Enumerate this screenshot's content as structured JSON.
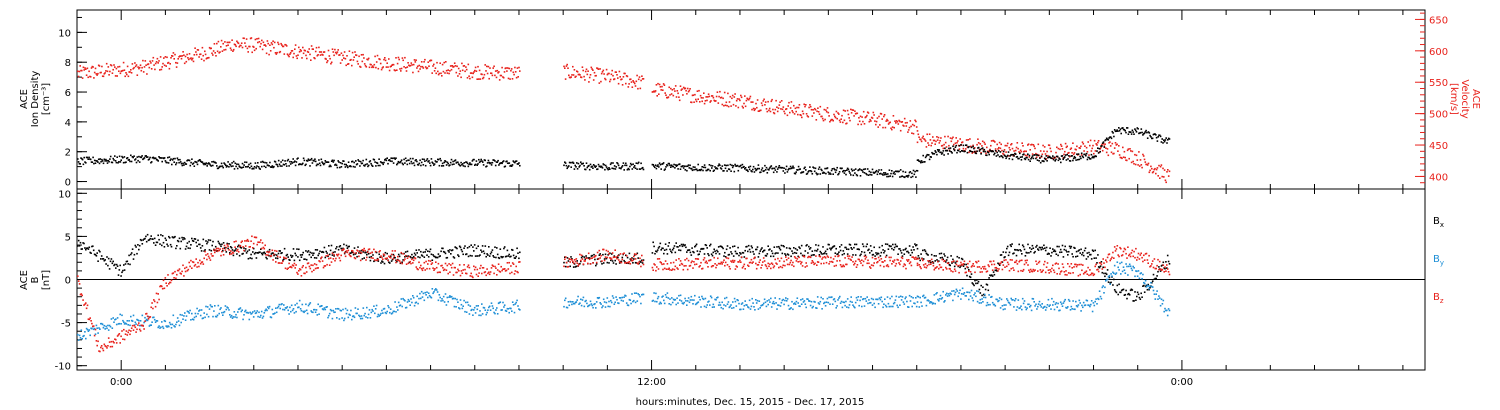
{
  "chart_data": [
    {
      "type": "scatter",
      "panel": "plasma",
      "xlabel": "hours:minutes, Dec. 15, 2015 - Dec. 17, 2015",
      "x_ticks": [
        "0:00",
        "12:00",
        "0:00"
      ],
      "x_unit": "hours from Dec. 15 0:00",
      "xlim": [
        -1,
        29.5
      ],
      "y_left": {
        "label_lines": [
          "ACE",
          "Ion Density",
          "[cm⁻³]"
        ],
        "ylim": [
          -0.5,
          11.5
        ],
        "ticks": [
          0,
          2,
          4,
          6,
          8,
          10
        ],
        "color": "#000000"
      },
      "y_right": {
        "label_lines": [
          "ACE",
          "Velocity",
          "[km/s]"
        ],
        "ylim": [
          380,
          665
        ],
        "ticks": [
          400,
          450,
          500,
          550,
          600,
          650
        ],
        "color": "#e8221c"
      },
      "series": [
        {
          "axis": "left",
          "color": "#000000",
          "segments": [
            {
              "t": [
                -1.0,
                0.5,
                2.0,
                3.0,
                4.0,
                5.0,
                6.0,
                7.0,
                8.0,
                9.0
              ],
              "v": [
                1.4,
                1.6,
                1.2,
                1.1,
                1.4,
                1.2,
                1.4,
                1.35,
                1.3,
                1.25
              ]
            },
            {
              "t": [
                10.0,
                11.0,
                11.8
              ],
              "v": [
                1.15,
                1.05,
                1.1
              ]
            },
            {
              "t": [
                12.0,
                13.0,
                14.0,
                15.0,
                16.0,
                17.0,
                18.0
              ],
              "v": [
                1.1,
                1.0,
                0.95,
                0.85,
                0.75,
                0.65,
                0.55
              ]
            },
            {
              "t": [
                18.0,
                18.5,
                19.0,
                20.0,
                21.0,
                22.0,
                22.5,
                23.0,
                23.7
              ],
              "v": [
                1.4,
                2.0,
                2.3,
                1.8,
                1.5,
                1.8,
                3.5,
                3.4,
                2.7
              ]
            }
          ]
        },
        {
          "axis": "right",
          "color": "#e8221c",
          "segments": [
            {
              "t": [
                -1.0,
                0.5,
                2.0,
                2.5,
                3.0,
                4.0,
                5.0,
                6.0,
                7.0,
                8.0,
                9.0
              ],
              "v": [
                565,
                575,
                600,
                612,
                610,
                600,
                590,
                582,
                575,
                568,
                565
              ]
            },
            {
              "t": [
                10.0,
                11.0,
                11.8
              ],
              "v": [
                568,
                560,
                550
              ]
            },
            {
              "t": [
                12.0,
                13.0,
                14.0,
                15.0,
                16.0,
                17.0,
                18.0
              ],
              "v": [
                540,
                530,
                522,
                510,
                500,
                492,
                480
              ]
            },
            {
              "t": [
                18.0,
                19.0,
                20.0,
                21.0,
                22.0,
                22.5,
                23.0,
                23.7
              ],
              "v": [
                460,
                452,
                445,
                440,
                448,
                445,
                430,
                400
              ]
            }
          ]
        }
      ]
    },
    {
      "type": "scatter",
      "panel": "magnetic-field",
      "xlim": [
        -1,
        29.5
      ],
      "y": {
        "label_lines": [
          "ACE",
          "B",
          "[nT]"
        ],
        "ylim": [
          -10.5,
          10.5
        ],
        "ticks": [
          -10,
          -5,
          0,
          5,
          10
        ]
      },
      "legend": [
        "Bₓ",
        "Bᵧ",
        "B₂"
      ],
      "legend_display": [
        {
          "base": "B",
          "sub": "x",
          "color": "#000000"
        },
        {
          "base": "B",
          "sub": "y",
          "color": "#1e8fd6"
        },
        {
          "base": "B",
          "sub": "z",
          "color": "#e8221c"
        }
      ],
      "series": [
        {
          "color": "#000000",
          "segments": [
            {
              "t": [
                -1.0,
                0.0,
                0.5,
                1.0,
                2.0,
                3.0,
                4.0,
                5.0,
                6.0,
                7.0,
                8.0,
                9.0
              ],
              "v": [
                4.5,
                1.0,
                5.0,
                4.5,
                4.0,
                3.0,
                3.0,
                3.5,
                2.5,
                3.0,
                3.5,
                3.0
              ]
            },
            {
              "t": [
                10.0,
                11.0,
                11.8
              ],
              "v": [
                2.0,
                2.5,
                2.5
              ]
            },
            {
              "t": [
                12.0,
                14.0,
                16.0,
                18.0
              ],
              "v": [
                3.8,
                3.3,
                3.5,
                3.5
              ]
            },
            {
              "t": [
                18.0,
                19.0,
                19.5,
                20.0,
                21.0,
                22.0,
                22.5,
                23.0,
                23.7
              ],
              "v": [
                3.0,
                2.0,
                -1.5,
                3.5,
                3.5,
                3.0,
                -1.0,
                -2.0,
                2.5
              ]
            }
          ]
        },
        {
          "color": "#1e8fd6",
          "segments": [
            {
              "t": [
                -1.0,
                0.0,
                1.0,
                2.0,
                3.0,
                4.0,
                5.0,
                6.0,
                7.0,
                8.0,
                9.0
              ],
              "v": [
                -6.5,
                -4.5,
                -5.0,
                -3.5,
                -4.0,
                -3.0,
                -4.0,
                -3.5,
                -1.5,
                -3.5,
                -3.0
              ]
            },
            {
              "t": [
                10.0,
                11.0,
                11.8
              ],
              "v": [
                -2.5,
                -2.5,
                -2.0
              ]
            },
            {
              "t": [
                12.0,
                14.0,
                16.0,
                18.0
              ],
              "v": [
                -2.0,
                -2.8,
                -2.6,
                -2.4
              ]
            },
            {
              "t": [
                18.0,
                19.0,
                20.0,
                21.0,
                22.0,
                22.5,
                23.0,
                23.7
              ],
              "v": [
                -2.5,
                -1.5,
                -2.8,
                -2.8,
                -3.0,
                1.5,
                1.0,
                -3.8
              ]
            }
          ]
        },
        {
          "color": "#e8221c",
          "segments": [
            {
              "t": [
                -1.0,
                -0.5,
                0.5,
                1.0,
                2.0,
                3.0,
                4.0,
                5.0,
                6.0,
                7.0,
                8.0,
                9.0
              ],
              "v": [
                0.0,
                -8.0,
                -5.0,
                0.0,
                3.0,
                4.5,
                1.0,
                3.0,
                3.0,
                1.5,
                1.0,
                1.5
              ]
            },
            {
              "t": [
                10.0,
                11.0,
                11.8
              ],
              "v": [
                2.0,
                3.0,
                2.2
              ]
            },
            {
              "t": [
                12.0,
                14.0,
                16.0,
                18.0
              ],
              "v": [
                1.8,
                2.0,
                2.2,
                2.0
              ]
            },
            {
              "t": [
                18.0,
                19.0,
                20.0,
                21.0,
                22.0,
                22.5,
                23.0,
                23.7
              ],
              "v": [
                2.0,
                1.5,
                1.8,
                1.5,
                1.0,
                3.5,
                3.0,
                1.0
              ]
            }
          ]
        }
      ]
    }
  ]
}
